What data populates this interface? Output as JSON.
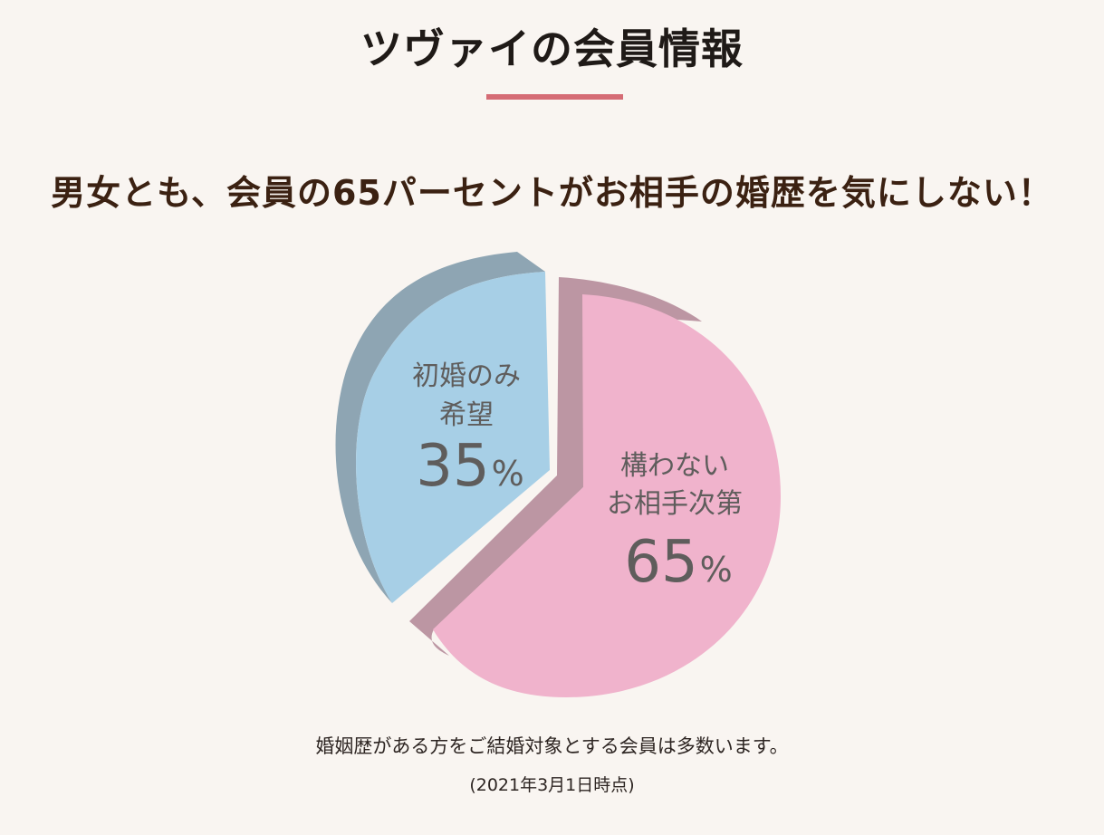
{
  "page": {
    "title": "ツヴァイの会員情報",
    "headline": "男女とも、会員の65パーセントがお相手の婚歴を気にしない！",
    "footnote": "婚姻歴がある方をご結婚対象とする会員は多数います。",
    "date_note": "(2021年3月1日時点)",
    "accent_color": "#d56c75"
  },
  "chart_data": {
    "type": "pie",
    "title": "",
    "style": "3d-exploded",
    "slices": [
      {
        "label_lines": [
          "初婚のみ",
          "希望"
        ],
        "value": 35,
        "value_text": "35",
        "unit": "%",
        "color": "#a7cfe6",
        "side_color": "#8ea5b3"
      },
      {
        "label_lines": [
          "構わない",
          "お相手次第"
        ],
        "value": 65,
        "value_text": "65",
        "unit": "%",
        "color": "#f0b3cc",
        "side_color": "#bc96a3"
      }
    ]
  }
}
